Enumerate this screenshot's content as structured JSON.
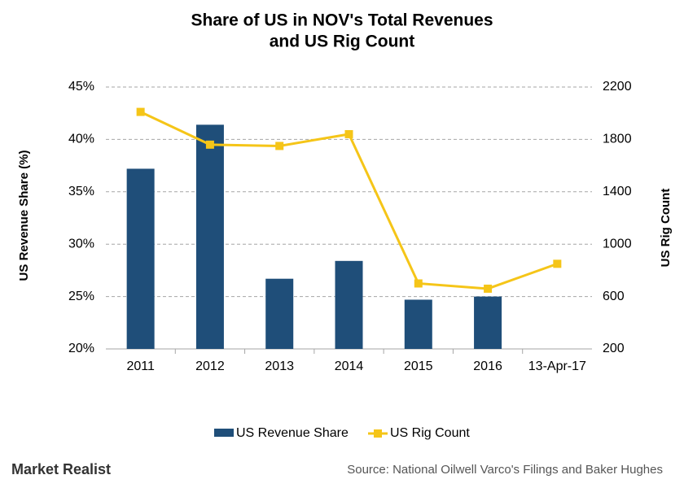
{
  "chart_data": {
    "type": "bar",
    "title": [
      "Share of US in NOV's Total Revenues",
      "and US Rig Count"
    ],
    "ylabel": "US Revenue Share (%)",
    "y2label": "US Rig Count",
    "categories": [
      "2011",
      "2012",
      "2013",
      "2014",
      "2015",
      "2016",
      "13-Apr-17"
    ],
    "series": [
      {
        "name": "US Revenue Share",
        "type": "bar",
        "color": "#1f4e79",
        "values": [
          37.2,
          41.4,
          26.7,
          28.4,
          24.7,
          25.0,
          null
        ]
      },
      {
        "name": "US Rig Count",
        "type": "line",
        "axis": "y2",
        "color": "#f5c518",
        "values": [
          2010,
          1760,
          1750,
          1840,
          700,
          660,
          850
        ]
      }
    ],
    "ylim": [
      20,
      45
    ],
    "yticks": [
      {
        "value": 20,
        "label": "20%"
      },
      {
        "value": 25,
        "label": "25%"
      },
      {
        "value": 30,
        "label": "30%"
      },
      {
        "value": 35,
        "label": "35%"
      },
      {
        "value": 40,
        "label": "40%"
      },
      {
        "value": 45,
        "label": "45%"
      }
    ],
    "y2lim": [
      200,
      2200
    ],
    "y2ticks": [
      200,
      600,
      1000,
      1400,
      1800,
      2200
    ],
    "grid": true,
    "legend": "bottom",
    "source": "Source: National Oilwell Varco's Filings and Baker Hughes",
    "brand": "Market Realist"
  }
}
